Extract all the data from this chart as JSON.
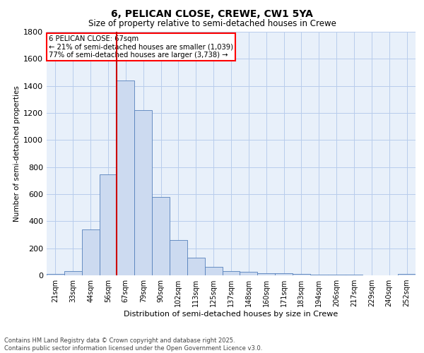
{
  "title": "6, PELICAN CLOSE, CREWE, CW1 5YA",
  "subtitle": "Size of property relative to semi-detached houses in Crewe",
  "xlabel": "Distribution of semi-detached houses by size in Crewe",
  "ylabel": "Number of semi-detached properties",
  "footer_line1": "Contains HM Land Registry data © Crown copyright and database right 2025.",
  "footer_line2": "Contains public sector information licensed under the Open Government Licence v3.0.",
  "annotation_title": "6 PELICAN CLOSE: 67sqm",
  "annotation_line1": "← 21% of semi-detached houses are smaller (1,039)",
  "annotation_line2": "77% of semi-detached houses are larger (3,738) →",
  "bar_color": "#ccdaf0",
  "bar_edge_color": "#5580bb",
  "red_line_color": "#cc0000",
  "categories": [
    "21sqm",
    "33sqm",
    "44sqm",
    "56sqm",
    "67sqm",
    "79sqm",
    "90sqm",
    "102sqm",
    "113sqm",
    "125sqm",
    "137sqm",
    "148sqm",
    "160sqm",
    "171sqm",
    "183sqm",
    "194sqm",
    "206sqm",
    "217sqm",
    "229sqm",
    "240sqm",
    "252sqm"
  ],
  "values": [
    10,
    30,
    340,
    745,
    1440,
    1220,
    580,
    260,
    130,
    65,
    30,
    28,
    18,
    15,
    10,
    5,
    5,
    3,
    2,
    2,
    10
  ],
  "ylim": [
    0,
    1800
  ],
  "yticks": [
    0,
    200,
    400,
    600,
    800,
    1000,
    1200,
    1400,
    1600,
    1800
  ],
  "red_line_index": 4,
  "background_color": "#ffffff",
  "plot_bg_color": "#e8f0fa",
  "grid_color": "#b8ccec"
}
